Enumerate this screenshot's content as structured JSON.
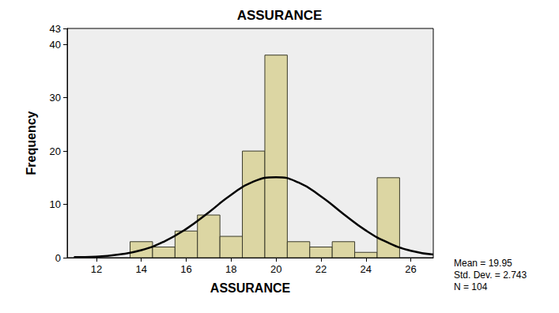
{
  "chart_data": {
    "type": "histogram",
    "title": "ASSURANCE",
    "x_label": "ASSURANCE",
    "y_label": "Frequency",
    "bins": [
      13.5,
      14.5,
      15.5,
      16.5,
      17.5,
      18.5,
      19.5,
      20.5,
      21.5,
      22.5,
      23.5,
      24.5,
      25.5
    ],
    "counts": [
      3,
      2,
      5,
      8,
      4,
      20,
      38,
      3,
      2,
      3,
      1,
      15
    ],
    "color": "#dcd6a3",
    "xlim": [
      10.7,
      27
    ],
    "xticks": [
      12,
      14,
      16,
      18,
      20,
      22,
      24,
      26
    ],
    "ylim": [
      0,
      43
    ],
    "yticks": [
      0,
      10,
      20,
      30,
      40
    ],
    "grid": false,
    "curve": {
      "type": "line",
      "color": "#000000",
      "x": [
        11,
        12,
        13,
        14,
        15,
        16,
        17,
        18,
        19,
        20,
        21,
        22,
        23,
        24,
        25,
        26,
        27
      ],
      "values": [
        0.1,
        0.2,
        0.6,
        1.4,
        3.0,
        5.4,
        8.5,
        11.8,
        14.3,
        15.1,
        14.1,
        11.5,
        8.2,
        5.1,
        2.8,
        1.3,
        0.6
      ]
    },
    "annotations": [
      "Mean = 19.95",
      "Std. Dev. = 2.743",
      "N = 104"
    ]
  }
}
